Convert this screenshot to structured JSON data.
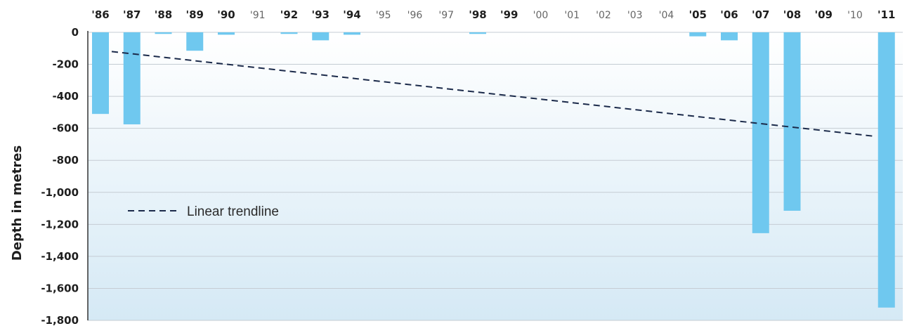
{
  "chart_data": {
    "type": "bar",
    "categories": [
      "'86",
      "'87",
      "'88",
      "'89",
      "'90",
      "'91",
      "'92",
      "'93",
      "'94",
      "'95",
      "'96",
      "'97",
      "'98",
      "'99",
      "'00",
      "'01",
      "'02",
      "'03",
      "'04",
      "'05",
      "'06",
      "'07",
      "'08",
      "'09",
      "'10",
      "'11"
    ],
    "bold_categories": [
      "'86",
      "'87",
      "'88",
      "'89",
      "'90",
      "'92",
      "'93",
      "'94",
      "'98",
      "'99",
      "'05",
      "'06",
      "'07",
      "'08",
      "'09",
      "'11"
    ],
    "values": [
      -510,
      -575,
      -10,
      -115,
      -15,
      0,
      -10,
      -50,
      -15,
      0,
      0,
      0,
      -10,
      0,
      0,
      0,
      0,
      0,
      0,
      -25,
      -50,
      -1255,
      -1115,
      0,
      0,
      -1720
    ],
    "ylabel": "Depth in metres",
    "ylim": [
      -1800,
      0
    ],
    "yticks": [
      0,
      -200,
      -400,
      -600,
      -800,
      -1000,
      -1200,
      -1400,
      -1600,
      -1800
    ],
    "ytick_labels": [
      "0",
      "-200",
      "-400",
      "-600",
      "-800",
      "-1,000",
      "-1,200",
      "-1,400",
      "-1,600",
      "-1,800"
    ],
    "trendline": {
      "label": "Linear trendline",
      "start": {
        "x": "'86",
        "y": -120
      },
      "end": {
        "x": "'11",
        "y": -650
      }
    },
    "grid": true,
    "legend_placement": "left-middle",
    "x_axis_position": "top",
    "colors": {
      "bar": "#6fc8ef",
      "trendline": "#1b2a4a",
      "plot_bg_top": "#ffffff",
      "plot_bg_bottom": "#d5e9f5",
      "grid": "#c5ccd3"
    }
  }
}
